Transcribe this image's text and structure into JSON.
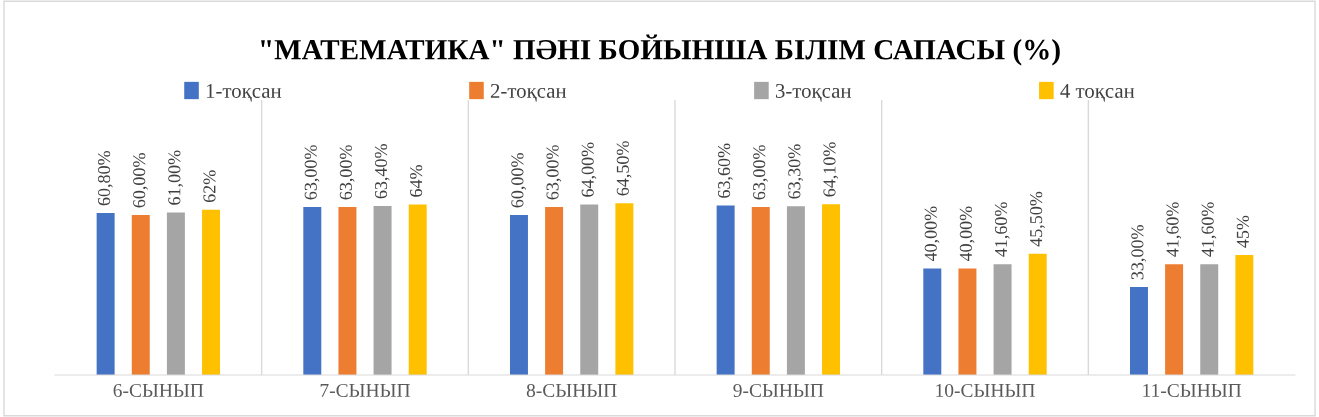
{
  "chart_data": {
    "type": "bar",
    "title": "\"МАТЕМАТИКА\" ПӘНІ БОЙЫНША БІЛІМ САПАСЫ (%)",
    "categories": [
      "6-СЫНЫП",
      "7-СЫНЫП",
      "8-СЫНЫП",
      "9-СЫНЫП",
      "10-СЫНЫП",
      "11-СЫНЫП"
    ],
    "series": [
      {
        "name": "1-тоқсан",
        "color": "#4472c4",
        "values": [
          60.8,
          63,
          60,
          63.6,
          40,
          33
        ],
        "value_labels": [
          "60,80%",
          "63,00%",
          "60,00%",
          "63,60%",
          "40,00%",
          "33,00%"
        ]
      },
      {
        "name": "2-тоқсан",
        "color": "#ed7d31",
        "values": [
          60,
          63,
          63,
          63,
          40,
          41.6
        ],
        "value_labels": [
          "60,00%",
          "63,00%",
          "63,00%",
          "63,00%",
          "40,00%",
          "41,60%"
        ]
      },
      {
        "name": "3-тоқсан",
        "color": "#a5a5a5",
        "values": [
          61,
          63.4,
          64,
          63.3,
          41.6,
          41.6
        ],
        "value_labels": [
          "61,00%",
          "63,40%",
          "64,00%",
          "63,30%",
          "41,60%",
          "41,60%"
        ]
      },
      {
        "name": "4 тоқсан",
        "color": "#ffc000",
        "values": [
          62,
          64,
          64.5,
          64.1,
          45.5,
          45
        ],
        "value_labels": [
          "62%",
          "64%",
          "64,50%",
          "64,10%",
          "45,50%",
          "45%"
        ]
      }
    ],
    "legend": "top",
    "grid": "x"
  }
}
